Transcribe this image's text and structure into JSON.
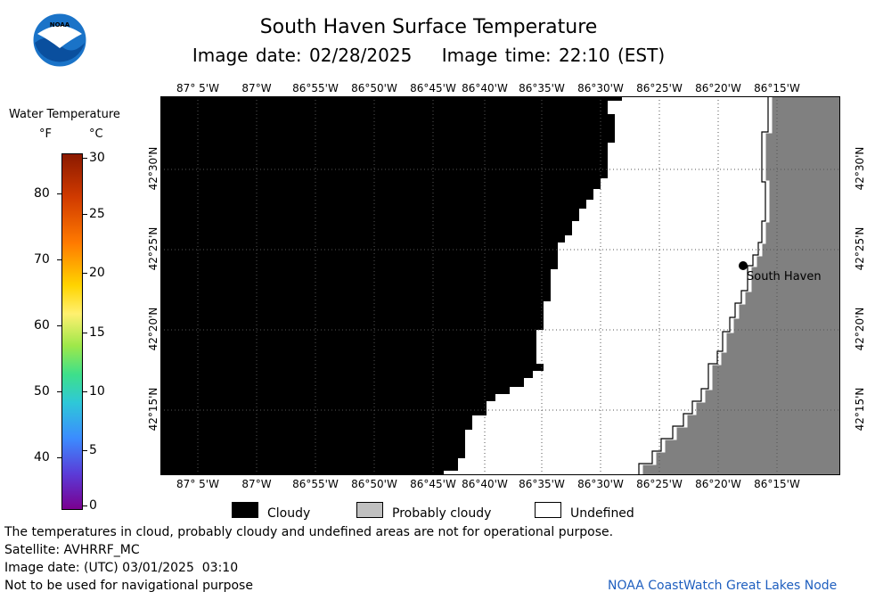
{
  "header": {
    "title": "South Haven Surface Temperature",
    "subtitle": "Image date: 02/28/2025    Image time: 22:10 (EST)",
    "logo_text": "NOAA"
  },
  "colorbar": {
    "title": "Water Temperature",
    "unit_f": "°F",
    "unit_c": "°C",
    "f_ticks": [
      "80",
      "70",
      "60",
      "50",
      "40"
    ],
    "c_ticks": [
      "30",
      "25",
      "20",
      "15",
      "10",
      "5",
      "0"
    ]
  },
  "map": {
    "lon_labels": [
      "87° 5'W",
      "87°W",
      "86°55'W",
      "86°50'W",
      "86°45'W",
      "86°40'W",
      "86°35'W",
      "86°30'W",
      "86°25'W",
      "86°20'W",
      "86°15'W"
    ],
    "lat_labels": [
      "42°30'N",
      "42°25'N",
      "42°20'N",
      "42°15'N"
    ],
    "place_label": "South Haven",
    "colors": {
      "cloud": "#000000",
      "probably_cloudy": "#c0c0c0",
      "land": "#808080",
      "undefined": "#ffffff"
    }
  },
  "legend": {
    "cloudy": "Cloudy",
    "probably_cloudy": "Probably cloudy",
    "undefined": "Undefined"
  },
  "footer": {
    "note": "The temperatures in cloud, probably cloudy and undefined areas are not for operational purpose.",
    "satellite": "Satellite: AVHRRF_MC",
    "utc_date": "Image date: (UTC) 03/01/2025  03:10",
    "nav_warning": "Not to be used for navigational purpose",
    "credit": "NOAA CoastWatch Great Lakes Node"
  }
}
